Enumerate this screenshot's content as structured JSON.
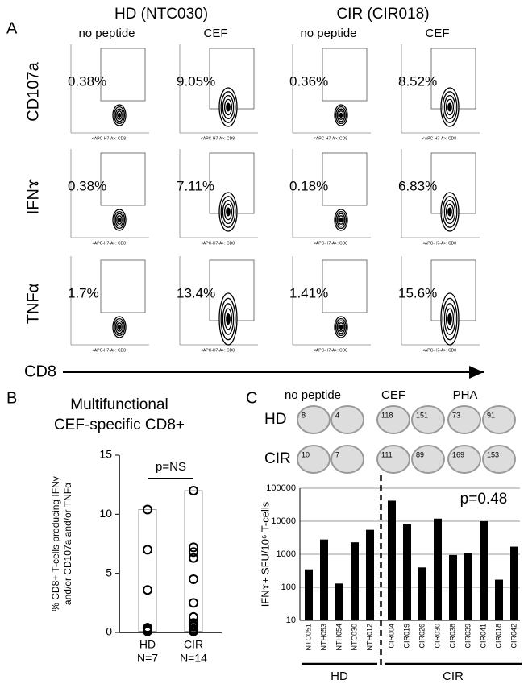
{
  "panel_a": {
    "label": "A",
    "columns": [
      {
        "group": "HD (NTC030)",
        "conditions": [
          "no peptide",
          "CEF"
        ]
      },
      {
        "group": "CIR (CIR018)",
        "conditions": [
          "no peptide",
          "CEF"
        ]
      }
    ],
    "rows": [
      {
        "marker": "CD107a",
        "percents": [
          "0.38%",
          "9.05%",
          "0.36%",
          "8.52%"
        ]
      },
      {
        "marker": "IFNɤ",
        "percents": [
          "0.38%",
          "7.11%",
          "0.18%",
          "6.83%"
        ]
      },
      {
        "marker": "TNFα",
        "percents": [
          "1.7%",
          "13.4%",
          "1.41%",
          "15.6%"
        ]
      }
    ],
    "plot_axis_label": "<APC-H7-A>: CD8",
    "x_axis_label": "CD8"
  },
  "chart_data": [
    {
      "type": "dot",
      "panel": "B",
      "title": [
        "Multifunctional",
        "CEF-specific CD8+"
      ],
      "ylabel": [
        "% CD8+ T-cells producing IFNγ",
        "and/or CD107a and/or TNFα"
      ],
      "categories": [
        "HD",
        "CIR"
      ],
      "category_notes": [
        "N=7",
        "N=14"
      ],
      "values": [
        [
          10.4,
          7.0,
          3.6,
          0.4,
          0.3,
          0.2,
          0.1
        ],
        [
          12.0,
          7.2,
          6.8,
          6.3,
          4.5,
          2.5,
          1.3,
          0.8,
          0.6,
          0.5,
          0.3,
          0.2,
          0.1,
          0.1
        ]
      ],
      "annotation": "p=NS",
      "ylim": [
        0,
        15
      ],
      "yticks": [
        0,
        5,
        10,
        15
      ],
      "color": "#000000"
    },
    {
      "type": "bar",
      "panel": "C",
      "log_scale": true,
      "grid": true,
      "color": "#000000",
      "ylabel": "IFNɤ+ SFU/10⁶ T-cells",
      "annotation": "p=0.48",
      "ylim": [
        10,
        100000
      ],
      "yticks": [
        10,
        100,
        1000,
        10000,
        100000
      ],
      "groups": [
        {
          "name": "HD",
          "categories": [
            "NTC051",
            "NTH053",
            "NTH054",
            "NTC030",
            "NTH012"
          ],
          "values": [
            350,
            2800,
            130,
            2300,
            5500
          ]
        },
        {
          "name": "CIR",
          "categories": [
            "CIR004",
            "CIR019",
            "CIR026",
            "CIR030",
            "CIR038",
            "CIR039",
            "CIR041",
            "CIR018",
            "CIR042"
          ],
          "values": [
            42000,
            8000,
            400,
            12000,
            950,
            1100,
            10000,
            170,
            1700
          ]
        }
      ],
      "wells": {
        "conditions": [
          "no peptide",
          "CEF",
          "PHA"
        ],
        "rows": [
          {
            "name": "HD",
            "counts": [
              8,
              4,
              118,
              151,
              73,
              91
            ]
          },
          {
            "name": "CIR",
            "counts": [
              10,
              7,
              111,
              89,
              169,
              153
            ]
          }
        ]
      }
    }
  ]
}
